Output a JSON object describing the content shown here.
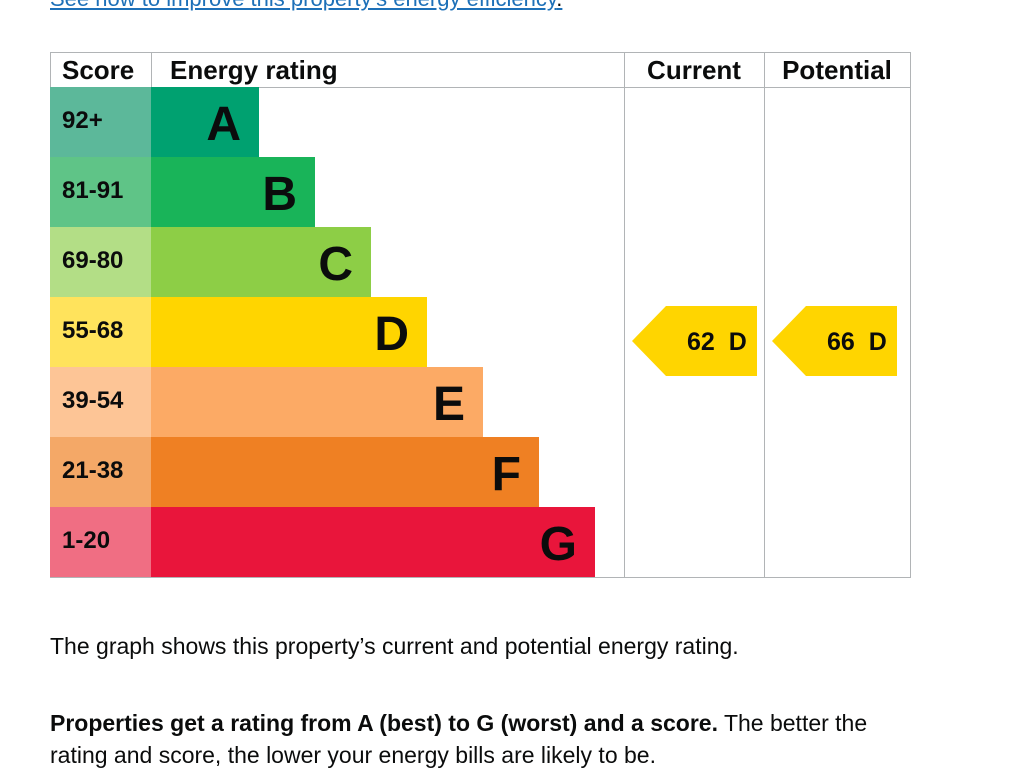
{
  "top_link": {
    "text": "See how to improve this property’s energy efficiency",
    "suffix": "."
  },
  "chart_data": {
    "type": "bar",
    "headers": {
      "score": "Score",
      "energy_rating": "Energy rating",
      "current": "Current",
      "potential": "Potential"
    },
    "bands": [
      {
        "score": "92+",
        "letter": "A",
        "bar_color": "#00a170",
        "score_color": "#5cb89a"
      },
      {
        "score": "81-91",
        "letter": "B",
        "bar_color": "#19b459",
        "score_color": "#5fc487"
      },
      {
        "score": "69-80",
        "letter": "C",
        "bar_color": "#8dce46",
        "score_color": "#b3de86"
      },
      {
        "score": "55-68",
        "letter": "D",
        "bar_color": "#ffd500",
        "score_color": "#ffe35c"
      },
      {
        "score": "39-54",
        "letter": "E",
        "bar_color": "#fcaa65",
        "score_color": "#fdc596"
      },
      {
        "score": "21-38",
        "letter": "F",
        "bar_color": "#ef8023",
        "score_color": "#f4a867"
      },
      {
        "score": "1-20",
        "letter": "G",
        "bar_color": "#e9153b",
        "score_color": "#f06e83"
      }
    ],
    "current": {
      "value": 62,
      "band": "D",
      "label": "62  D"
    },
    "potential": {
      "value": 66,
      "band": "D",
      "label": "66  D"
    },
    "marker_color": "#ffd500"
  },
  "paragraphs": {
    "p1": "The graph shows this property’s current and potential energy rating.",
    "p2_bold": "Properties get a rating from A (best) to G (worst) and a score.",
    "p2_rest": " The better the rating and score, the lower your energy bills are likely to be."
  }
}
